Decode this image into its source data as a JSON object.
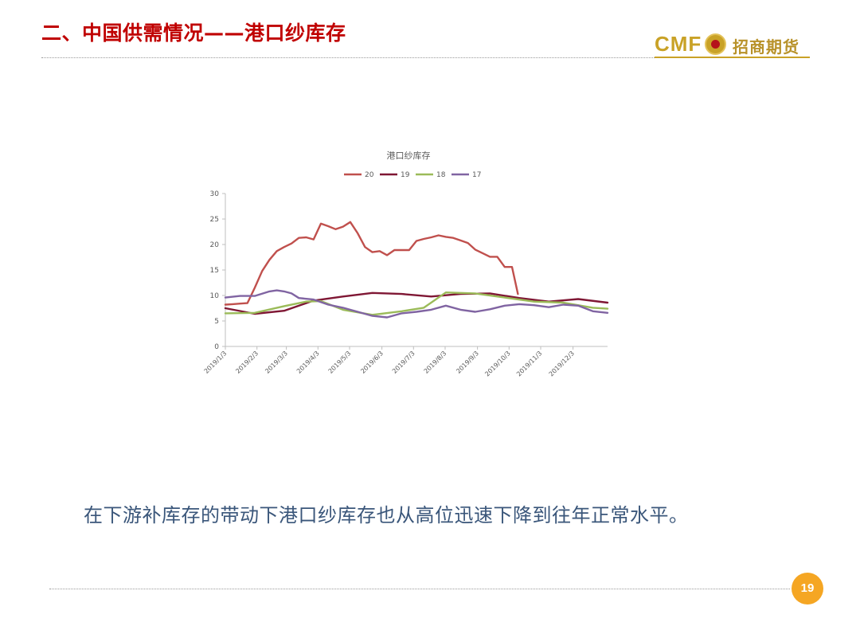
{
  "header": {
    "title": "二、中国供需情况——港口纱库存",
    "logo_text": "CMF",
    "logo_cn": "招商期货"
  },
  "caption": "在下游补库存的带动下港口纱库存也从高位迅速下降到往年正常水平。",
  "page_number": "19",
  "chart_data": {
    "type": "line",
    "title": "港口纱库存",
    "legend_position": "top",
    "grid": false,
    "ylim": [
      0,
      30
    ],
    "y_ticks": [
      0,
      5,
      10,
      15,
      20,
      25,
      30
    ],
    "x_range": [
      0,
      52
    ],
    "x_tick_positions": [
      0,
      4.3,
      8.3,
      12.6,
      16.9,
      21.3,
      25.6,
      29.9,
      34.3,
      38.6,
      42.9,
      47.3
    ],
    "x_tick_labels": [
      "2019/1/3",
      "2019/2/3",
      "2019/3/3",
      "2019/4/3",
      "2019/5/3",
      "2019/6/3",
      "2019/7/3",
      "2019/8/3",
      "2019/9/3",
      "2019/10/3",
      "2019/11/3",
      "2019/12/3"
    ],
    "series": [
      {
        "name": "20",
        "color": "#c0504d",
        "x": [
          0,
          1,
          2,
          3,
          4,
          5,
          6,
          7,
          8,
          9,
          10,
          11,
          12,
          13,
          14,
          15,
          16,
          17,
          18,
          19,
          20,
          21,
          22,
          23,
          24,
          25,
          26,
          27,
          28,
          29,
          30,
          31,
          32,
          33,
          34,
          35,
          36,
          37,
          38,
          39,
          39.8
        ],
        "values": [
          8.2,
          8.3,
          8.4,
          8.5,
          11.5,
          14.8,
          17.0,
          18.7,
          19.5,
          20.2,
          21.3,
          21.4,
          21.0,
          24.1,
          23.6,
          23.0,
          23.5,
          24.4,
          22.2,
          19.5,
          18.5,
          18.7,
          17.9,
          18.9,
          18.9,
          18.9,
          20.7,
          21.1,
          21.4,
          21.8,
          21.5,
          21.3,
          20.8,
          20.3,
          19.0,
          18.3,
          17.6,
          17.6,
          15.6,
          15.6,
          10.3
        ]
      },
      {
        "name": "19",
        "color": "#7f1734",
        "x": [
          0,
          4,
          8,
          12,
          16,
          20,
          24,
          28,
          32,
          36,
          40,
          44,
          48,
          52
        ],
        "values": [
          7.5,
          6.4,
          7.0,
          9.0,
          9.8,
          10.5,
          10.3,
          9.8,
          10.3,
          10.4,
          9.5,
          8.8,
          9.3,
          8.6
        ]
      },
      {
        "name": "18",
        "color": "#9bbb59",
        "x": [
          0,
          4,
          8,
          11,
          13,
          16,
          20,
          24,
          27,
          30,
          34,
          38,
          42,
          46,
          50,
          52
        ],
        "values": [
          6.5,
          6.6,
          7.9,
          8.8,
          8.9,
          7.2,
          6.2,
          6.9,
          7.6,
          10.6,
          10.4,
          9.6,
          8.8,
          8.6,
          7.6,
          7.4
        ]
      },
      {
        "name": "17",
        "color": "#8064a2",
        "x": [
          0,
          2,
          4,
          6,
          7,
          8,
          9,
          10,
          12,
          14,
          16,
          18,
          20,
          22,
          24,
          26,
          28,
          30,
          32,
          34,
          36,
          38,
          40,
          42,
          44,
          46,
          48,
          50,
          52
        ],
        "values": [
          9.6,
          9.9,
          9.9,
          10.8,
          11.0,
          10.8,
          10.4,
          9.5,
          9.2,
          8.2,
          7.6,
          6.8,
          6.0,
          5.7,
          6.5,
          6.8,
          7.2,
          8.0,
          7.2,
          6.8,
          7.3,
          8.0,
          8.3,
          8.1,
          7.7,
          8.2,
          8.0,
          6.9,
          6.6
        ]
      }
    ]
  }
}
